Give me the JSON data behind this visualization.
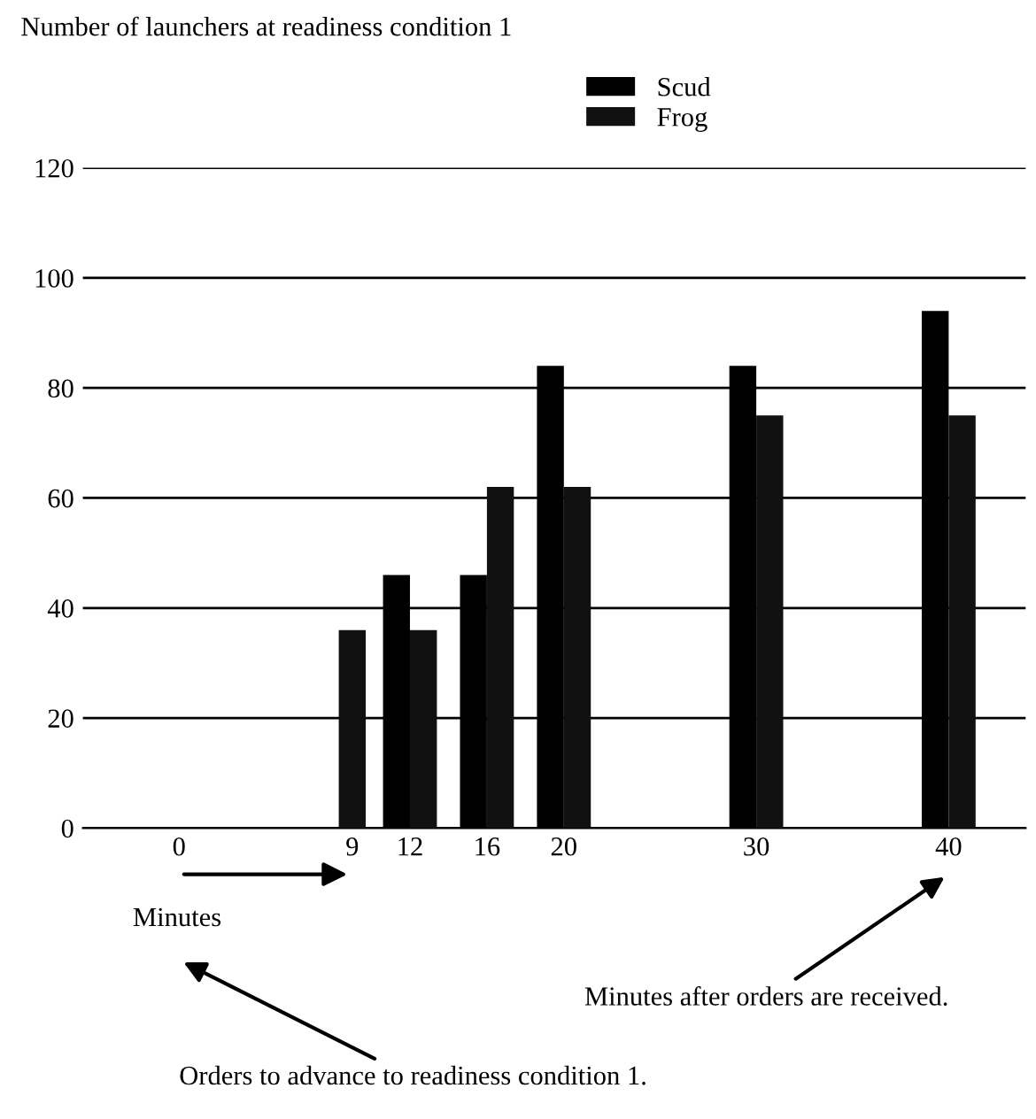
{
  "chart_data": {
    "type": "bar",
    "ylabel": "Number of launchers at readiness condition 1",
    "xlabel": "Minutes",
    "x": [
      9,
      12,
      16,
      20,
      30,
      40
    ],
    "series": [
      {
        "name": "Scud",
        "color": "#000000",
        "values": [
          null,
          46,
          46,
          84,
          84,
          94
        ]
      },
      {
        "name": "Frog",
        "color": "#111111",
        "values": [
          36,
          36,
          62,
          62,
          75,
          75
        ]
      }
    ],
    "xlim": [
      -5,
      44
    ],
    "xticks": [
      0,
      9,
      12,
      16,
      20,
      30,
      40
    ],
    "ylim": [
      0,
      120
    ],
    "yticks": [
      0,
      20,
      40,
      60,
      80,
      100,
      120
    ],
    "grid": "y",
    "legend": "top",
    "annotations": [
      "Orders to advance to readiness condition 1.",
      "Minutes after orders are received."
    ]
  }
}
